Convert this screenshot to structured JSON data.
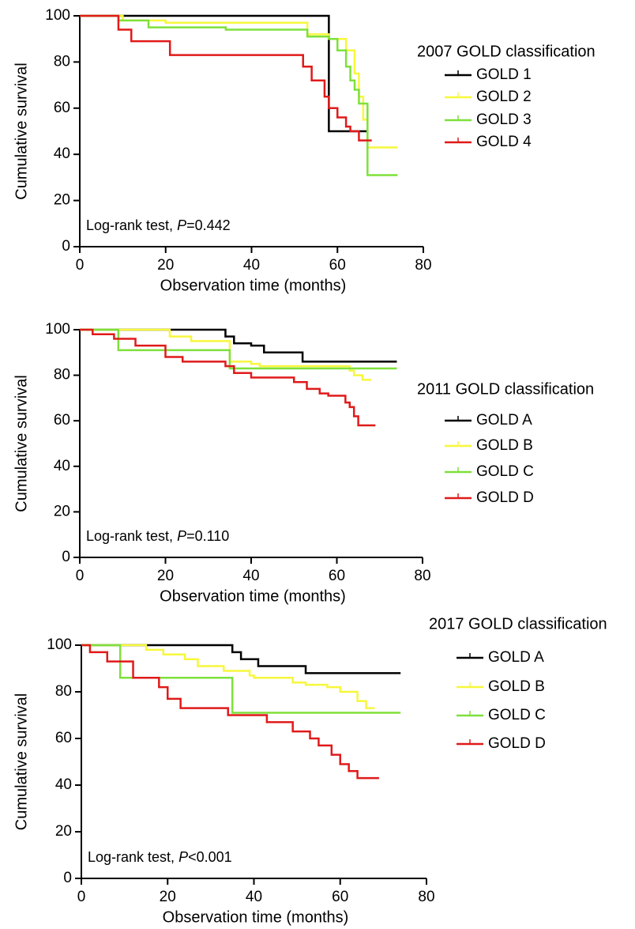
{
  "chart_data": [
    {
      "type": "step",
      "legend_title": "2007 GOLD classification",
      "annotation": [
        "Log-rank test, ",
        "P",
        "=0.442"
      ],
      "xlabel": "Observation time (months)",
      "ylabel": "Cumulative survival",
      "xlim": [
        0,
        80
      ],
      "xticks": [
        0,
        20,
        40,
        60,
        80
      ],
      "ylim": [
        0,
        100
      ],
      "yticks": [
        0,
        20,
        40,
        60,
        80,
        100
      ],
      "series": [
        {
          "name": "GOLD 1",
          "color": "#000000",
          "x": [
            0,
            58,
            67
          ],
          "values": [
            100,
            50,
            50
          ]
        },
        {
          "name": "GOLD 2",
          "color": "#f7f73c",
          "x": [
            0,
            10,
            20,
            53,
            58,
            62,
            64,
            65,
            66,
            67,
            74
          ],
          "values": [
            100,
            98,
            97,
            92,
            90,
            85,
            75,
            65,
            55,
            43,
            43
          ]
        },
        {
          "name": "GOLD 3",
          "color": "#7ee03b",
          "x": [
            0,
            9,
            16,
            34,
            53,
            58,
            60,
            62,
            63,
            64,
            65,
            67,
            74
          ],
          "values": [
            100,
            98,
            95,
            94,
            91,
            90,
            85,
            78,
            72,
            68,
            62,
            31,
            31
          ]
        },
        {
          "name": "GOLD 4",
          "color": "#e01a1a",
          "x": [
            0,
            9,
            12,
            21,
            52,
            54,
            57,
            58,
            60,
            62,
            63,
            65,
            68
          ],
          "values": [
            100,
            94,
            89,
            83,
            78,
            72,
            65,
            60,
            56,
            52,
            50,
            46,
            46
          ]
        }
      ]
    },
    {
      "type": "step",
      "legend_title": "2011 GOLD classification",
      "annotation": [
        "Log-rank test, ",
        "P",
        "=0.110"
      ],
      "xlabel": "Observation time (months)",
      "ylabel": "Cumulative survival",
      "xlim": [
        0,
        80
      ],
      "xticks": [
        0,
        20,
        40,
        60,
        80
      ],
      "ylim": [
        0,
        100
      ],
      "yticks": [
        0,
        20,
        40,
        60,
        80,
        100
      ],
      "series": [
        {
          "name": "GOLD A",
          "color": "#000000",
          "x": [
            0,
            34,
            36,
            40,
            43,
            52,
            74
          ],
          "values": [
            100,
            97,
            94,
            93,
            90,
            86,
            86
          ]
        },
        {
          "name": "GOLD B",
          "color": "#f7f73c",
          "x": [
            0,
            21,
            26,
            35,
            40,
            42,
            55,
            63,
            64,
            66,
            68
          ],
          "values": [
            100,
            97,
            95,
            86,
            85,
            84,
            84,
            82,
            80,
            78,
            78
          ]
        },
        {
          "name": "GOLD C",
          "color": "#7ee03b",
          "x": [
            0,
            9,
            35,
            74
          ],
          "values": [
            100,
            91,
            83,
            83
          ]
        },
        {
          "name": "GOLD D",
          "color": "#e01a1a",
          "x": [
            0,
            3,
            8,
            13,
            20,
            24,
            34,
            36,
            40,
            50,
            53,
            56,
            58,
            62,
            63,
            64,
            65,
            69
          ],
          "values": [
            100,
            98,
            96,
            93,
            88,
            86,
            84,
            81,
            79,
            77,
            74,
            72,
            71,
            68,
            66,
            62,
            58,
            58
          ]
        }
      ]
    },
    {
      "type": "step",
      "legend_title": "2017 GOLD classification",
      "annotation": [
        "Log-rank test, ",
        "P",
        "<0.001"
      ],
      "xlabel": "Observation time (months)",
      "ylabel": "Cumulative survival",
      "xlim": [
        0,
        80
      ],
      "xticks": [
        0,
        20,
        40,
        60,
        80
      ],
      "ylim": [
        0,
        100
      ],
      "yticks": [
        0,
        20,
        40,
        60,
        80,
        100
      ],
      "series": [
        {
          "name": "GOLD A",
          "color": "#000000",
          "x": [
            0,
            35,
            37,
            41,
            43,
            52,
            74
          ],
          "values": [
            100,
            97,
            94,
            91,
            91,
            88,
            88
          ]
        },
        {
          "name": "GOLD B",
          "color": "#f7f73c",
          "x": [
            0,
            15,
            19,
            24,
            27,
            33,
            39,
            40,
            45,
            49,
            52,
            57,
            60,
            64,
            66,
            68
          ],
          "values": [
            100,
            98,
            96,
            94,
            91,
            89,
            87,
            86,
            86,
            84,
            83,
            82,
            80,
            76,
            73,
            73
          ]
        },
        {
          "name": "GOLD C",
          "color": "#7ee03b",
          "x": [
            0,
            9,
            35,
            74
          ],
          "values": [
            100,
            86,
            71,
            71
          ]
        },
        {
          "name": "GOLD D",
          "color": "#e01a1a",
          "x": [
            0,
            2,
            6,
            12,
            18,
            20,
            23,
            34,
            43,
            49,
            53,
            55,
            58,
            60,
            62,
            64,
            69
          ],
          "values": [
            100,
            97,
            93,
            86,
            82,
            77,
            73,
            70,
            67,
            63,
            60,
            57,
            53,
            49,
            46,
            43,
            43
          ]
        }
      ]
    }
  ]
}
